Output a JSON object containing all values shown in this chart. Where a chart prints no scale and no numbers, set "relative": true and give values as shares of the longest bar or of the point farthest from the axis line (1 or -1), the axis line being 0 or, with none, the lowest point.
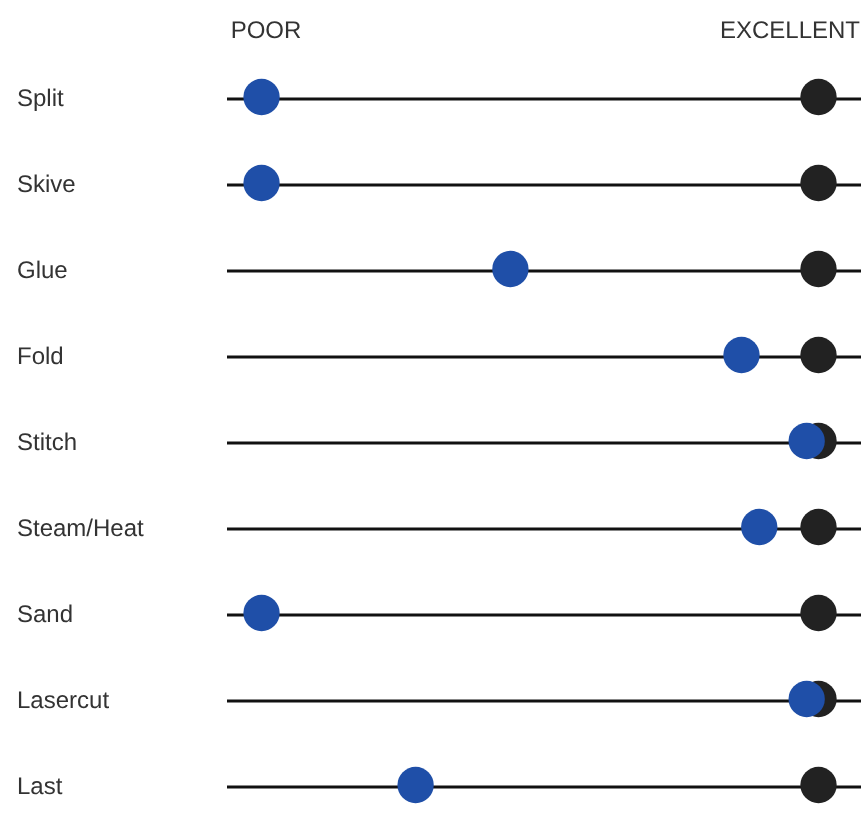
{
  "chart_data": {
    "type": "scatter",
    "orientation": "horizontal",
    "relative": true,
    "categories": [
      "Split",
      "Skive",
      "Glue",
      "Fold",
      "Stitch",
      "Steam/Heat",
      "Sand",
      "Lasercut",
      "Last"
    ],
    "series": [
      {
        "color": "#222222",
        "values": [
          1,
          1,
          1,
          1,
          1,
          1,
          1,
          1,
          1
        ]
      },
      {
        "color": "#1f4fa8",
        "values": [
          0.06,
          0.06,
          0.48,
          0.87,
          0.98,
          0.9,
          0.06,
          0.98,
          0.32
        ]
      }
    ],
    "annotations": [
      "POOR",
      "EXCELLENT"
    ],
    "grid": "y",
    "legend": false,
    "marker": "circle"
  }
}
